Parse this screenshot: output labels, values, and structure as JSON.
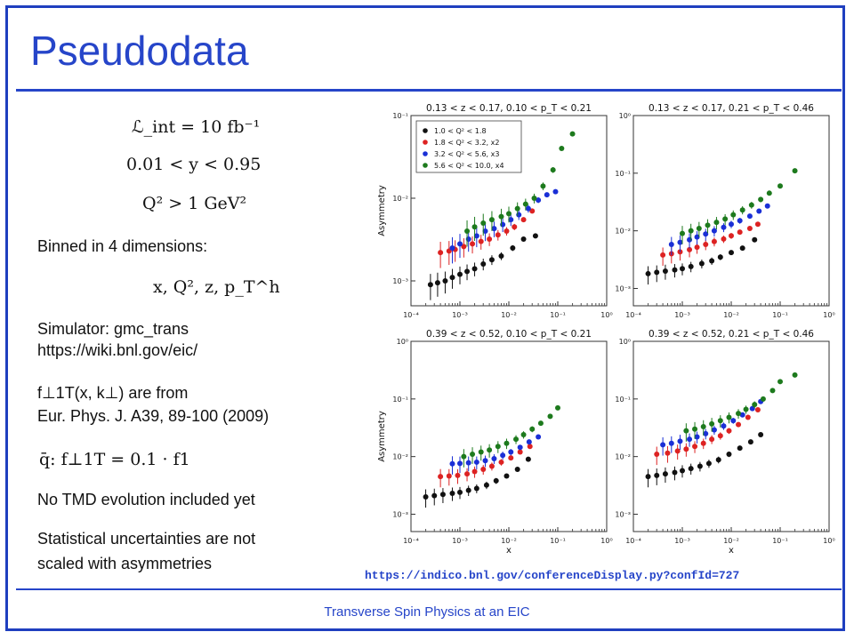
{
  "title": "Pseudodata",
  "footer": "Transverse Spin Physics at an EIC",
  "left": {
    "eq1": "ℒ_int = 10 fb⁻¹",
    "eq2": "0.01 < y < 0.95",
    "eq3": "Q² > 1 GeV²",
    "binned": "Binned in 4 dimensions:",
    "vars": "x, Q², z, p_T^h",
    "simulator": "Simulator: gmc_trans",
    "wiki": "https://wiki.bnl.gov/eic/",
    "f_from": "f⊥1T(x, k⊥) are from",
    "journal": "Eur. Phys. J. A39, 89-100 (2009)",
    "qbar": "q̄: f⊥1T = 0.1 · f1",
    "no_tmd": "No TMD evolution included yet",
    "stat1": "Statistical uncertainties are not",
    "stat2": "scaled with asymmetries"
  },
  "source_url": "https://indico.bnl.gov/conferenceDisplay.py?confId=727",
  "chart_data": [
    {
      "type": "scatter",
      "title": "0.13 < z < 0.17, 0.10 < p_T < 0.21",
      "xlabel": "",
      "ylabel": "Asymmetry",
      "xscale": "log",
      "yscale": "log",
      "xlim": [
        0.0001,
        1
      ],
      "ylim": [
        0.0005,
        0.1
      ],
      "legend": "top-left",
      "series": [
        {
          "name": "1.0 < Q² < 1.8",
          "color": "#111111",
          "x": [
            0.00025,
            0.00035,
            0.0005,
            0.0007,
            0.001,
            0.0014,
            0.002,
            0.003,
            0.0045,
            0.007,
            0.012,
            0.02,
            0.035
          ],
          "y": [
            0.0009,
            0.00095,
            0.001,
            0.0011,
            0.0012,
            0.0013,
            0.0014,
            0.0016,
            0.0018,
            0.002,
            0.0025,
            0.0032,
            0.0035
          ]
        },
        {
          "name": "1.8 < Q² < 3.2, x2",
          "color": "#dd2222",
          "x": [
            0.0004,
            0.0006,
            0.0008,
            0.0012,
            0.0018,
            0.0027,
            0.004,
            0.006,
            0.009,
            0.013,
            0.02,
            0.03
          ],
          "y": [
            0.0022,
            0.0023,
            0.0024,
            0.0026,
            0.0028,
            0.003,
            0.0032,
            0.0036,
            0.004,
            0.0045,
            0.0055,
            0.007
          ]
        },
        {
          "name": "3.2 < Q² < 5.6, x3",
          "color": "#1a2fd6",
          "x": [
            0.0007,
            0.001,
            0.0015,
            0.0022,
            0.0033,
            0.005,
            0.0075,
            0.011,
            0.016,
            0.025,
            0.04,
            0.06,
            0.09
          ],
          "y": [
            0.0025,
            0.0028,
            0.0032,
            0.0035,
            0.004,
            0.0043,
            0.0048,
            0.0055,
            0.0063,
            0.0075,
            0.0095,
            0.011,
            0.012
          ]
        },
        {
          "name": "5.6 < Q² < 10.0, x4",
          "color": "#1d7a1d",
          "x": [
            0.0014,
            0.002,
            0.003,
            0.0045,
            0.007,
            0.01,
            0.015,
            0.022,
            0.033,
            0.05,
            0.08,
            0.12,
            0.2
          ],
          "y": [
            0.004,
            0.0045,
            0.005,
            0.0055,
            0.006,
            0.0065,
            0.0075,
            0.0085,
            0.01,
            0.014,
            0.022,
            0.04,
            0.06
          ]
        }
      ]
    },
    {
      "type": "scatter",
      "title": "0.13 < z < 0.17, 0.21 < p_T < 0.46",
      "xlabel": "",
      "ylabel": "",
      "xscale": "log",
      "yscale": "log",
      "xlim": [
        0.0001,
        1
      ],
      "ylim": [
        0.0005,
        1
      ],
      "series": [
        {
          "color": "#111111",
          "x": [
            0.0002,
            0.0003,
            0.00045,
            0.0007,
            0.001,
            0.0015,
            0.0025,
            0.004,
            0.006,
            0.01,
            0.017,
            0.03
          ],
          "y": [
            0.0018,
            0.0019,
            0.002,
            0.0021,
            0.0022,
            0.0024,
            0.0027,
            0.003,
            0.0035,
            0.0042,
            0.005,
            0.007
          ]
        },
        {
          "color": "#dd2222",
          "x": [
            0.0004,
            0.0006,
            0.0009,
            0.0014,
            0.002,
            0.003,
            0.0045,
            0.007,
            0.01,
            0.015,
            0.024,
            0.035
          ],
          "y": [
            0.0038,
            0.004,
            0.0043,
            0.0047,
            0.0052,
            0.0058,
            0.0065,
            0.0072,
            0.0082,
            0.0095,
            0.011,
            0.013
          ]
        },
        {
          "color": "#1a2fd6",
          "x": [
            0.0006,
            0.0009,
            0.0014,
            0.002,
            0.003,
            0.0045,
            0.007,
            0.01,
            0.015,
            0.024,
            0.037,
            0.055
          ],
          "y": [
            0.0058,
            0.0063,
            0.007,
            0.0078,
            0.0088,
            0.01,
            0.0115,
            0.013,
            0.015,
            0.018,
            0.022,
            0.027
          ]
        },
        {
          "color": "#1d7a1d",
          "x": [
            0.001,
            0.0015,
            0.0022,
            0.0033,
            0.005,
            0.0075,
            0.011,
            0.017,
            0.026,
            0.04,
            0.06,
            0.1,
            0.2
          ],
          "y": [
            0.009,
            0.01,
            0.011,
            0.0125,
            0.014,
            0.016,
            0.019,
            0.023,
            0.028,
            0.035,
            0.045,
            0.06,
            0.11
          ]
        }
      ]
    },
    {
      "type": "scatter",
      "title": "0.39 < z < 0.52, 0.10 < p_T < 0.21",
      "xlabel": "x",
      "ylabel": "Asymmetry",
      "xscale": "log",
      "yscale": "log",
      "xlim": [
        0.0001,
        1
      ],
      "ylim": [
        0.0005,
        1
      ],
      "series": [
        {
          "color": "#111111",
          "x": [
            0.0002,
            0.0003,
            0.00045,
            0.0007,
            0.001,
            0.0015,
            0.0022,
            0.0035,
            0.0055,
            0.009,
            0.015,
            0.025
          ],
          "y": [
            0.002,
            0.0021,
            0.0022,
            0.0023,
            0.0024,
            0.0026,
            0.0028,
            0.0032,
            0.0038,
            0.0046,
            0.006,
            0.009
          ]
        },
        {
          "color": "#dd2222",
          "x": [
            0.0004,
            0.0006,
            0.0009,
            0.0014,
            0.002,
            0.003,
            0.0045,
            0.007,
            0.011,
            0.017,
            0.027
          ],
          "y": [
            0.0045,
            0.0046,
            0.0047,
            0.005,
            0.0055,
            0.006,
            0.0068,
            0.008,
            0.0095,
            0.012,
            0.015
          ]
        },
        {
          "color": "#1a2fd6",
          "x": [
            0.0007,
            0.001,
            0.0015,
            0.0022,
            0.0033,
            0.005,
            0.0075,
            0.011,
            0.017,
            0.026,
            0.04
          ],
          "y": [
            0.0075,
            0.0076,
            0.0078,
            0.008,
            0.0085,
            0.0092,
            0.0105,
            0.012,
            0.0145,
            0.018,
            0.022
          ]
        },
        {
          "color": "#1d7a1d",
          "x": [
            0.0012,
            0.0018,
            0.0027,
            0.004,
            0.006,
            0.009,
            0.014,
            0.02,
            0.03,
            0.045,
            0.07,
            0.1
          ],
          "y": [
            0.01,
            0.011,
            0.012,
            0.013,
            0.015,
            0.017,
            0.02,
            0.024,
            0.03,
            0.038,
            0.05,
            0.07
          ]
        }
      ]
    },
    {
      "type": "scatter",
      "title": "0.39 < z < 0.52, 0.21 < p_T < 0.46",
      "xlabel": "x",
      "ylabel": "",
      "xscale": "log",
      "yscale": "log",
      "xlim": [
        0.0001,
        1
      ],
      "ylim": [
        0.0005,
        1
      ],
      "series": [
        {
          "color": "#111111",
          "x": [
            0.0002,
            0.0003,
            0.00045,
            0.0007,
            0.001,
            0.0015,
            0.0023,
            0.0035,
            0.0055,
            0.009,
            0.015,
            0.025,
            0.04
          ],
          "y": [
            0.0045,
            0.0047,
            0.005,
            0.0053,
            0.0057,
            0.0062,
            0.0068,
            0.0076,
            0.0088,
            0.011,
            0.014,
            0.018,
            0.024
          ]
        },
        {
          "color": "#dd2222",
          "x": [
            0.0003,
            0.0005,
            0.0008,
            0.0012,
            0.0018,
            0.0027,
            0.004,
            0.006,
            0.009,
            0.014,
            0.022,
            0.035
          ],
          "y": [
            0.011,
            0.0115,
            0.0125,
            0.0135,
            0.015,
            0.017,
            0.02,
            0.023,
            0.028,
            0.036,
            0.048,
            0.065
          ]
        },
        {
          "color": "#1a2fd6",
          "x": [
            0.0004,
            0.0006,
            0.0009,
            0.0014,
            0.002,
            0.003,
            0.0045,
            0.007,
            0.011,
            0.017,
            0.027,
            0.04
          ],
          "y": [
            0.016,
            0.017,
            0.0185,
            0.02,
            0.022,
            0.025,
            0.029,
            0.034,
            0.042,
            0.053,
            0.068,
            0.09
          ]
        },
        {
          "color": "#1d7a1d",
          "x": [
            0.0012,
            0.0018,
            0.0027,
            0.004,
            0.006,
            0.009,
            0.014,
            0.02,
            0.03,
            0.045,
            0.07,
            0.1,
            0.2
          ],
          "y": [
            0.028,
            0.03,
            0.033,
            0.037,
            0.042,
            0.048,
            0.056,
            0.066,
            0.08,
            0.1,
            0.14,
            0.2,
            0.26
          ]
        }
      ]
    }
  ]
}
